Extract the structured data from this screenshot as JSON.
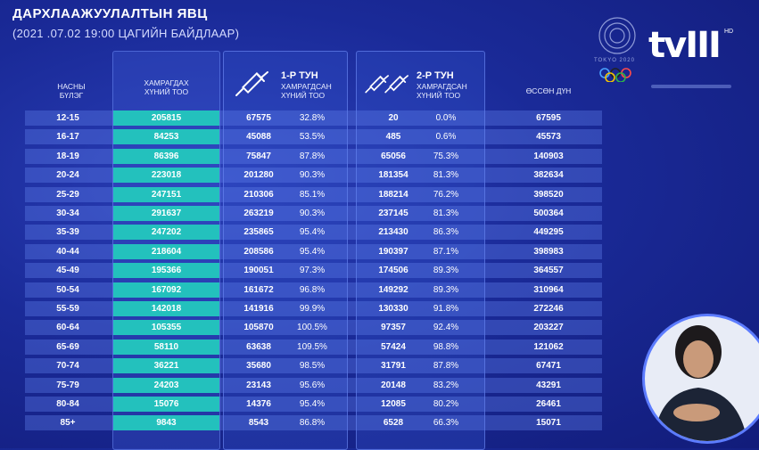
{
  "header": {
    "title": "ДАРХЛААЖУУЛАЛТЫН ЯВЦ",
    "subtitle": "(2021 .07.02  19:00 ЦАГИЙН БАЙДЛААР)"
  },
  "columns": {
    "age": [
      "НАСНЫ",
      "БҮЛЭГ"
    ],
    "covered": [
      "ХАМРАГДАХ",
      "ХҮНИЙ ТОО"
    ],
    "dose1_title": "1-Р ТУН",
    "dose1_sub": [
      "ХАМРАГДСАН",
      "ХҮНИЙ ТОО"
    ],
    "dose2_title": "2-Р ТУН",
    "dose2_sub": [
      "ХАМРАГДСАН",
      "ХҮНИЙ ТОО"
    ],
    "total": "ӨССӨН ДҮН"
  },
  "rows": [
    {
      "age": "12-15",
      "covered": "205815",
      "d1": "67575",
      "p1": "32.8%",
      "d2": "20",
      "p2": "0.0%",
      "total": "67595"
    },
    {
      "age": "16-17",
      "covered": "84253",
      "d1": "45088",
      "p1": "53.5%",
      "d2": "485",
      "p2": "0.6%",
      "total": "45573"
    },
    {
      "age": "18-19",
      "covered": "86396",
      "d1": "75847",
      "p1": "87.8%",
      "d2": "65056",
      "p2": "75.3%",
      "total": "140903"
    },
    {
      "age": "20-24",
      "covered": "223018",
      "d1": "201280",
      "p1": "90.3%",
      "d2": "181354",
      "p2": "81.3%",
      "total": "382634"
    },
    {
      "age": "25-29",
      "covered": "247151",
      "d1": "210306",
      "p1": "85.1%",
      "d2": "188214",
      "p2": "76.2%",
      "total": "398520"
    },
    {
      "age": "30-34",
      "covered": "291637",
      "d1": "263219",
      "p1": "90.3%",
      "d2": "237145",
      "p2": "81.3%",
      "total": "500364"
    },
    {
      "age": "35-39",
      "covered": "247202",
      "d1": "235865",
      "p1": "95.4%",
      "d2": "213430",
      "p2": "86.3%",
      "total": "449295"
    },
    {
      "age": "40-44",
      "covered": "218604",
      "d1": "208586",
      "p1": "95.4%",
      "d2": "190397",
      "p2": "87.1%",
      "total": "398983"
    },
    {
      "age": "45-49",
      "covered": "195366",
      "d1": "190051",
      "p1": "97.3%",
      "d2": "174506",
      "p2": "89.3%",
      "total": "364557"
    },
    {
      "age": "50-54",
      "covered": "167092",
      "d1": "161672",
      "p1": "96.8%",
      "d2": "149292",
      "p2": "89.3%",
      "total": "310964"
    },
    {
      "age": "55-59",
      "covered": "142018",
      "d1": "141916",
      "p1": "99.9%",
      "d2": "130330",
      "p2": "91.8%",
      "total": "272246"
    },
    {
      "age": "60-64",
      "covered": "105355",
      "d1": "105870",
      "p1": "100.5%",
      "d2": "97357",
      "p2": "92.4%",
      "total": "203227"
    },
    {
      "age": "65-69",
      "covered": "58110",
      "d1": "63638",
      "p1": "109.5%",
      "d2": "57424",
      "p2": "98.8%",
      "total": "121062"
    },
    {
      "age": "70-74",
      "covered": "36221",
      "d1": "35680",
      "p1": "98.5%",
      "d2": "31791",
      "p2": "87.8%",
      "total": "67471"
    },
    {
      "age": "75-79",
      "covered": "24203",
      "d1": "23143",
      "p1": "95.6%",
      "d2": "20148",
      "p2": "83.2%",
      "total": "43291"
    },
    {
      "age": "80-84",
      "covered": "15076",
      "d1": "14376",
      "p1": "95.4%",
      "d2": "12085",
      "p2": "80.2%",
      "total": "26461"
    },
    {
      "age": "85+",
      "covered": "9843",
      "d1": "8543",
      "p1": "86.8%",
      "d2": "6528",
      "p2": "66.3%",
      "total": "15071"
    }
  ],
  "branding": {
    "channel": "tvIII",
    "hd": "HD",
    "olympic": "TOKYO 2020"
  },
  "colors": {
    "background": "#1a2a98",
    "covered_column": "#23c1bd",
    "row_bar": "#5f7deb"
  },
  "icons": [
    "syringe-icon",
    "olympic-rings-icon"
  ]
}
